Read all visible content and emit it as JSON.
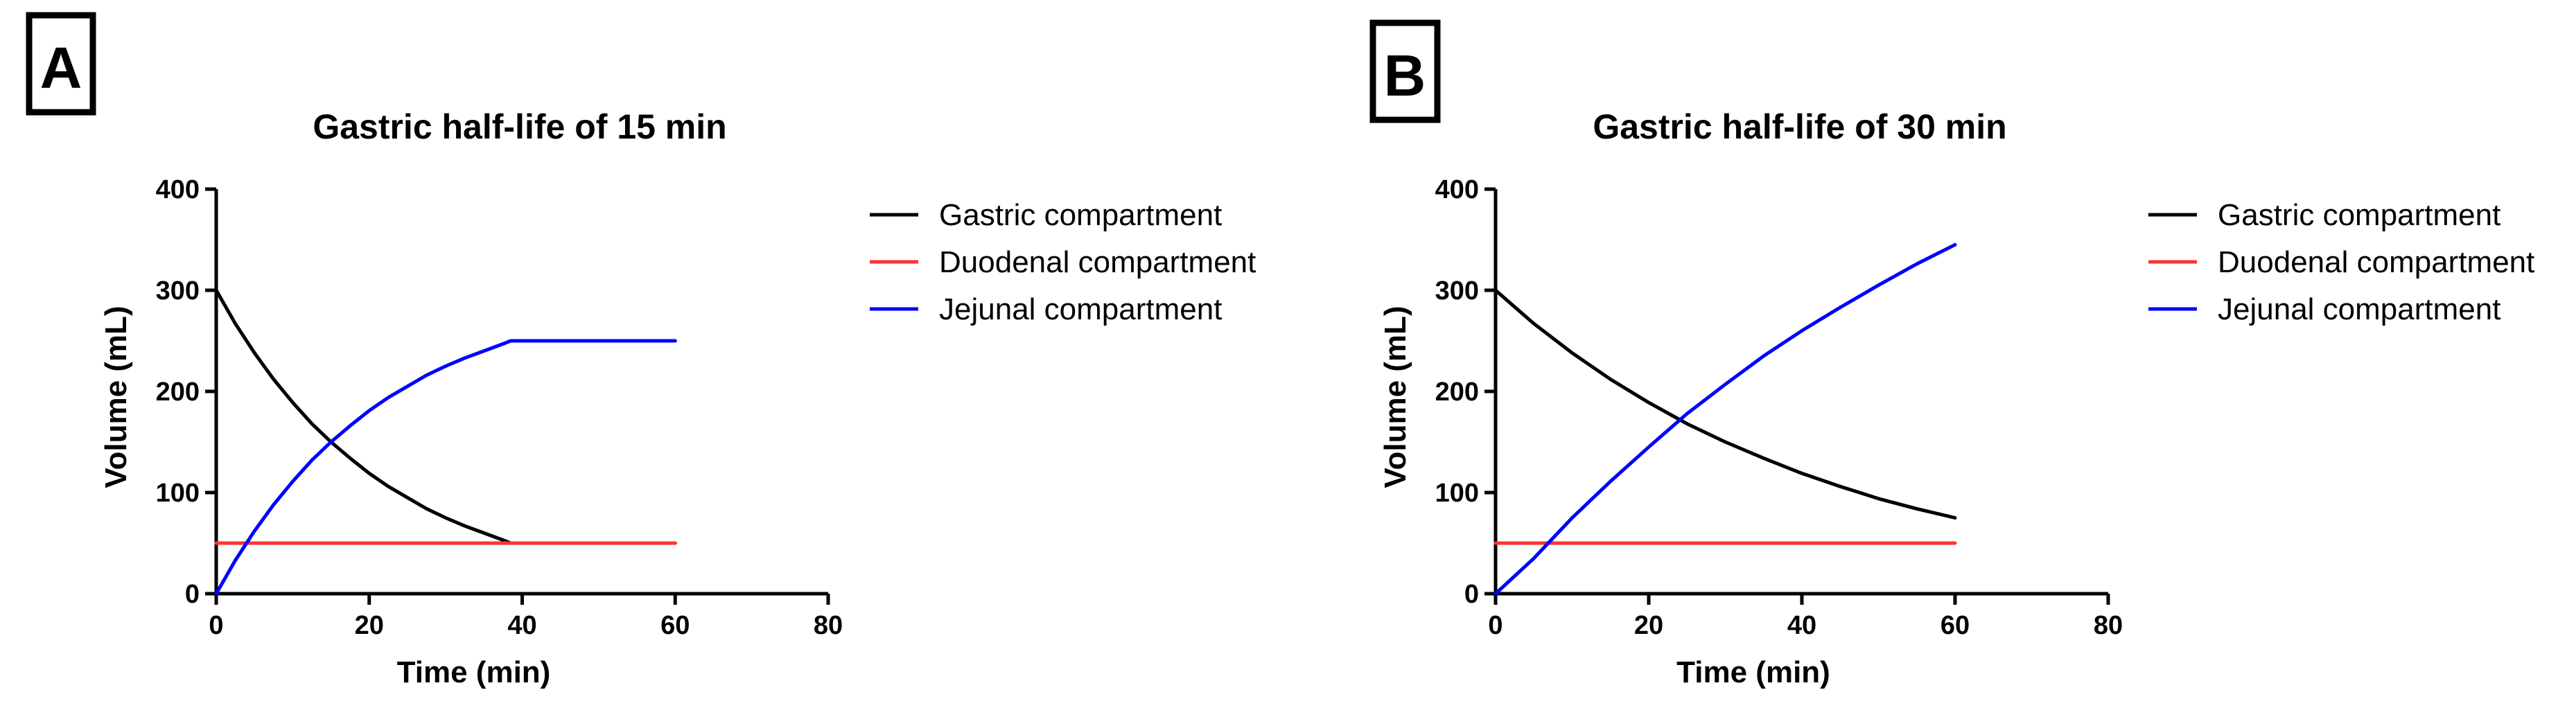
{
  "chart_data": [
    {
      "type": "line",
      "panel_label": "A",
      "title": "Gastric half-life of 15 min",
      "xlabel": "Time (min)",
      "ylabel": "Volume (mL)",
      "xlim": [
        0,
        80
      ],
      "ylim": [
        0,
        400
      ],
      "xticks": [
        0,
        20,
        40,
        60,
        80
      ],
      "yticks": [
        0,
        100,
        200,
        300,
        400
      ],
      "grid": false,
      "legend_position": "right",
      "series": [
        {
          "name": "Gastric compartment",
          "color": "#000000",
          "x": [
            0,
            2.5,
            5,
            7.5,
            10,
            12.5,
            15,
            17.5,
            20,
            22.5,
            25,
            27.5,
            30,
            32.5,
            35,
            37.5,
            38.5,
            40,
            45,
            50,
            55,
            60
          ],
          "y": [
            300,
            267,
            238,
            212,
            189,
            168,
            150,
            134,
            119,
            106,
            95,
            84,
            75,
            67,
            60,
            53,
            50,
            50,
            50,
            50,
            50,
            50
          ]
        },
        {
          "name": "Duodenal compartment",
          "color": "#ff3333",
          "x": [
            0,
            60
          ],
          "y": [
            50,
            50
          ]
        },
        {
          "name": "Jejunal compartment",
          "color": "#0000ff",
          "x": [
            0,
            2.5,
            5,
            7.5,
            10,
            12.5,
            15,
            17.5,
            20,
            22.5,
            25,
            27.5,
            30,
            32.5,
            35,
            37.5,
            38.5,
            40,
            45,
            50,
            55,
            60
          ],
          "y": [
            0,
            33,
            62,
            88,
            111,
            132,
            150,
            166,
            181,
            194,
            205,
            216,
            225,
            233,
            240,
            247,
            250,
            250,
            250,
            250,
            250,
            250
          ]
        }
      ]
    },
    {
      "type": "line",
      "panel_label": "B",
      "title": "Gastric half-life of 30 min",
      "xlabel": "Time (min)",
      "ylabel": "Volume (mL)",
      "xlim": [
        0,
        80
      ],
      "ylim": [
        0,
        400
      ],
      "xticks": [
        0,
        20,
        40,
        60,
        80
      ],
      "yticks": [
        0,
        100,
        200,
        300,
        400
      ],
      "grid": false,
      "legend_position": "right",
      "series": [
        {
          "name": "Gastric compartment",
          "color": "#000000",
          "x": [
            0,
            5,
            10,
            15,
            20,
            25,
            30,
            35,
            40,
            45,
            50,
            55,
            60
          ],
          "y": [
            300,
            267,
            238,
            212,
            189,
            168,
            150,
            134,
            119,
            106,
            94,
            84,
            75
          ]
        },
        {
          "name": "Duodenal compartment",
          "color": "#ff3333",
          "x": [
            0,
            60
          ],
          "y": [
            50,
            50
          ]
        },
        {
          "name": "Jejunal compartment",
          "color": "#0000ff",
          "x": [
            0,
            5,
            10,
            15,
            20,
            25,
            30,
            35,
            40,
            45,
            50,
            55,
            60
          ],
          "y": [
            0,
            35,
            75,
            111,
            145,
            178,
            207,
            235,
            260,
            283,
            305,
            326,
            345
          ]
        }
      ]
    }
  ]
}
